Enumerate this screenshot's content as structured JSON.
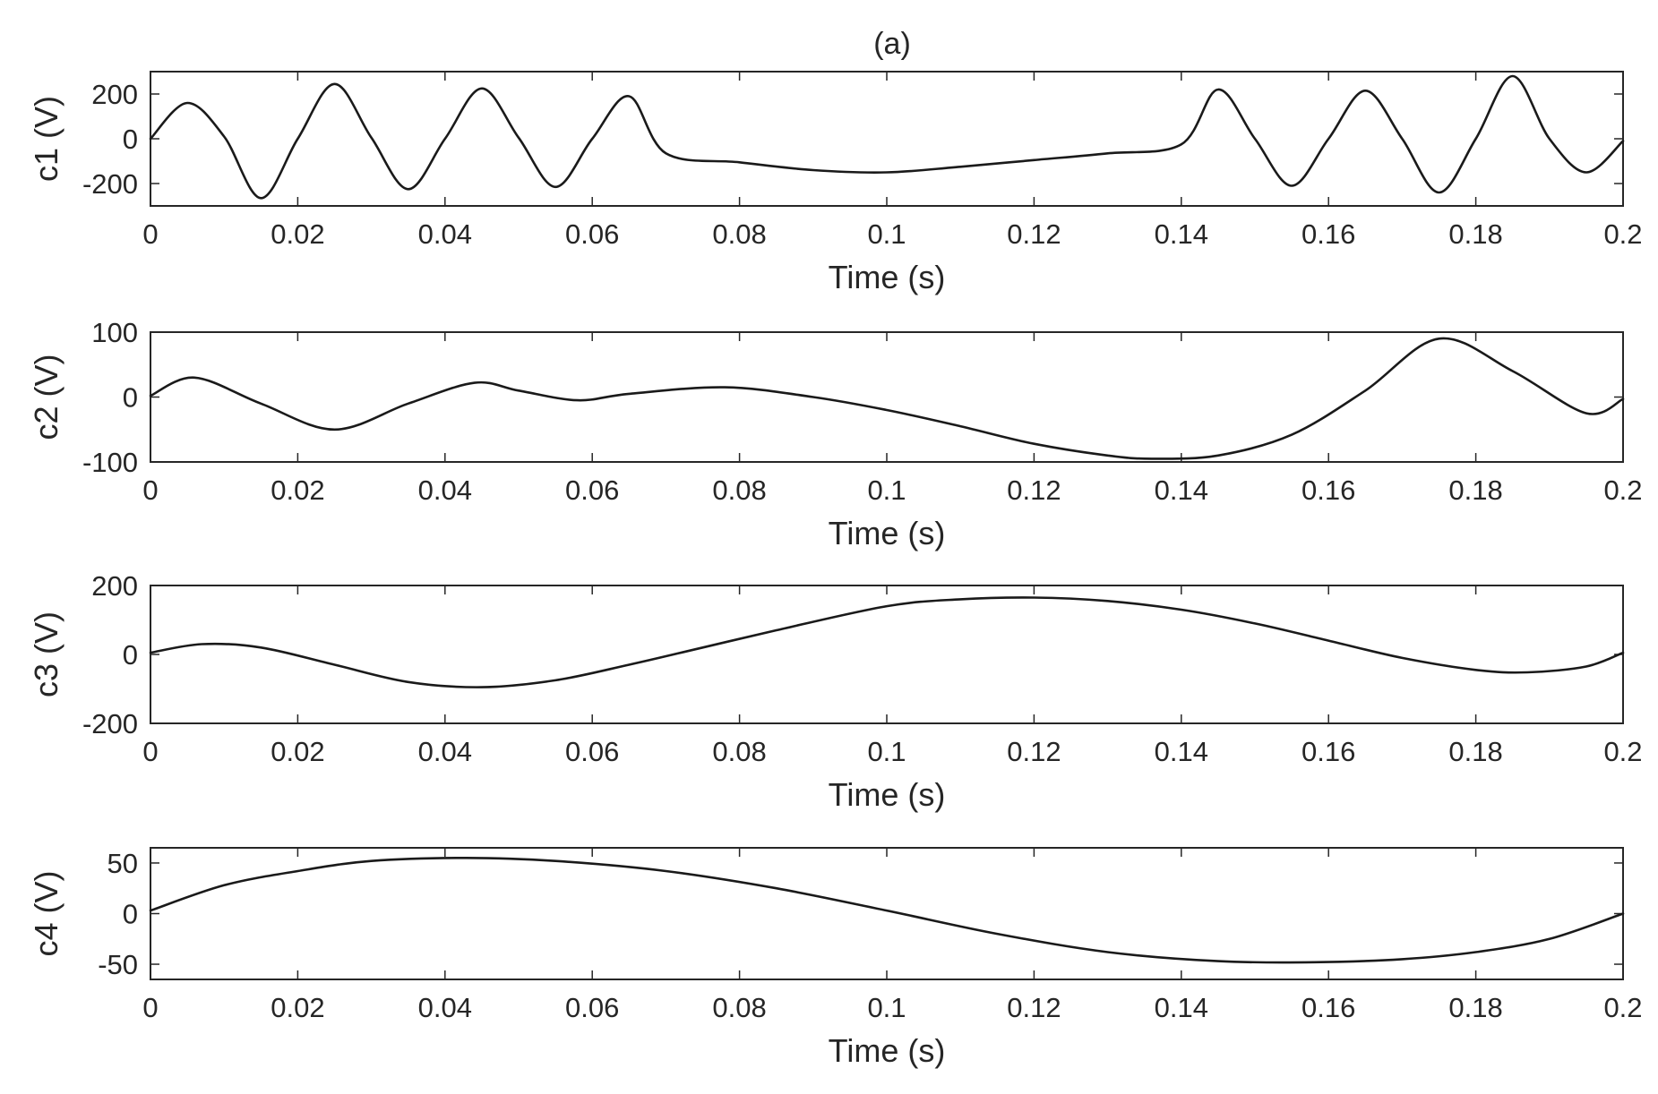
{
  "chart_data": {
    "title": "(a)",
    "type": "line",
    "grid": false,
    "legend": "none",
    "line_color": "#1a1a1a",
    "panels": [
      {
        "id": "c1",
        "type": "line",
        "ylabel": "c1 (V)",
        "xlabel": "Time (s)",
        "xlim": [
          0,
          0.2
        ],
        "ylim": [
          -300,
          300
        ],
        "xticks": [
          "0",
          "0.02",
          "0.04",
          "0.06",
          "0.08",
          "0.1",
          "0.12",
          "0.14",
          "0.16",
          "0.18",
          "0.2"
        ],
        "yticks": [
          {
            "value": 200,
            "label": "200"
          },
          {
            "value": 0,
            "label": "0"
          },
          {
            "value": -200,
            "label": "-200"
          }
        ],
        "x": [
          0,
          0.005,
          0.01,
          0.015,
          0.02,
          0.025,
          0.03,
          0.035,
          0.04,
          0.045,
          0.05,
          0.055,
          0.06,
          0.065,
          0.07,
          0.08,
          0.09,
          0.1,
          0.11,
          0.12,
          0.13,
          0.14,
          0.145,
          0.15,
          0.155,
          0.16,
          0.165,
          0.17,
          0.175,
          0.18,
          0.185,
          0.19,
          0.195,
          0.2
        ],
        "y": [
          0,
          160,
          10,
          -265,
          0,
          245,
          5,
          -225,
          0,
          225,
          5,
          -215,
          0,
          190,
          -65,
          -105,
          -140,
          -150,
          -125,
          -95,
          -65,
          -25,
          220,
          0,
          -210,
          0,
          215,
          0,
          -240,
          0,
          280,
          0,
          -150,
          -10
        ]
      },
      {
        "id": "c2",
        "type": "line",
        "ylabel": "c2 (V)",
        "xlabel": "Time (s)",
        "xlim": [
          0,
          0.2
        ],
        "ylim": [
          -100,
          100
        ],
        "xticks": [
          "0",
          "0.02",
          "0.04",
          "0.06",
          "0.08",
          "0.1",
          "0.12",
          "0.14",
          "0.16",
          "0.18",
          "0.2"
        ],
        "yticks": [
          {
            "value": 100,
            "label": "100"
          },
          {
            "value": 0,
            "label": "0"
          },
          {
            "value": -100,
            "label": "-100"
          }
        ],
        "x": [
          0,
          0.006,
          0.015,
          0.025,
          0.035,
          0.044,
          0.05,
          0.058,
          0.065,
          0.078,
          0.09,
          0.1,
          0.11,
          0.12,
          0.13,
          0.136,
          0.145,
          0.155,
          0.165,
          0.175,
          0.185,
          0.195,
          0.2
        ],
        "y": [
          2,
          30,
          -10,
          -50,
          -10,
          22,
          10,
          -5,
          5,
          15,
          0,
          -20,
          -45,
          -72,
          -90,
          -95,
          -90,
          -58,
          10,
          90,
          40,
          -25,
          -3
        ]
      },
      {
        "id": "c3",
        "type": "line",
        "ylabel": "c3 (V)",
        "xlabel": "Time (s)",
        "xlim": [
          0,
          0.2
        ],
        "ylim": [
          -200,
          200
        ],
        "xticks": [
          "0",
          "0.02",
          "0.04",
          "0.06",
          "0.08",
          "0.1",
          "0.12",
          "0.14",
          "0.16",
          "0.18",
          "0.2"
        ],
        "yticks": [
          {
            "value": 200,
            "label": "200"
          },
          {
            "value": 0,
            "label": "0"
          },
          {
            "value": -200,
            "label": "-200"
          }
        ],
        "x": [
          0,
          0.007,
          0.015,
          0.025,
          0.035,
          0.045,
          0.055,
          0.065,
          0.075,
          0.085,
          0.1,
          0.11,
          0.12,
          0.13,
          0.14,
          0.15,
          0.16,
          0.17,
          0.18,
          0.187,
          0.195,
          0.2
        ],
        "y": [
          5,
          30,
          20,
          -30,
          -80,
          -95,
          -75,
          -30,
          20,
          70,
          140,
          160,
          165,
          155,
          130,
          90,
          40,
          -10,
          -45,
          -52,
          -35,
          5
        ]
      },
      {
        "id": "c4",
        "type": "line",
        "ylabel": "c4 (V)",
        "xlabel": "Time (s)",
        "xlim": [
          0,
          0.2
        ],
        "ylim": [
          -65,
          65
        ],
        "xticks": [
          "0",
          "0.02",
          "0.04",
          "0.06",
          "0.08",
          "0.1",
          "0.12",
          "0.14",
          "0.16",
          "0.18",
          "0.2"
        ],
        "yticks": [
          {
            "value": 50,
            "label": "50"
          },
          {
            "value": 0,
            "label": "0"
          },
          {
            "value": -50,
            "label": "-50"
          }
        ],
        "x": [
          0,
          0.01,
          0.02,
          0.03,
          0.043,
          0.055,
          0.07,
          0.085,
          0.1,
          0.115,
          0.13,
          0.145,
          0.158,
          0.17,
          0.18,
          0.19,
          0.2
        ],
        "y": [
          3,
          28,
          42,
          52,
          55,
          52,
          42,
          25,
          3,
          -20,
          -38,
          -47,
          -48,
          -45,
          -38,
          -25,
          0
        ]
      }
    ]
  }
}
